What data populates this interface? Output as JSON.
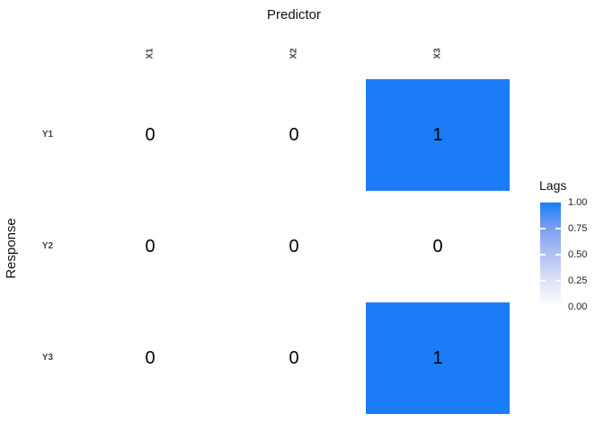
{
  "chart_data": {
    "type": "heatmap",
    "title": "",
    "xlabel": "Predictor",
    "ylabel": "Response",
    "columns": [
      "X1",
      "X2",
      "X3"
    ],
    "rows": [
      "Y1",
      "Y2",
      "Y3"
    ],
    "values": [
      [
        0,
        0,
        1
      ],
      [
        0,
        0,
        0
      ],
      [
        0,
        0,
        1
      ]
    ],
    "legend": {
      "title": "Lags",
      "position": "right",
      "ticks": [
        "1.00",
        "0.75",
        "0.50",
        "0.25",
        "0.00"
      ],
      "min": 0,
      "max": 1
    },
    "colors": {
      "high": "#1b7cf8",
      "low": "#ffffff",
      "gradient_mid_75": "#7da0f0",
      "gradient_mid_50": "#b1c1f3",
      "gradient_mid_25": "#dce2f8",
      "value_text": "#000000",
      "axis_text": "#444444",
      "title_text": "#111111"
    },
    "grid": false
  }
}
